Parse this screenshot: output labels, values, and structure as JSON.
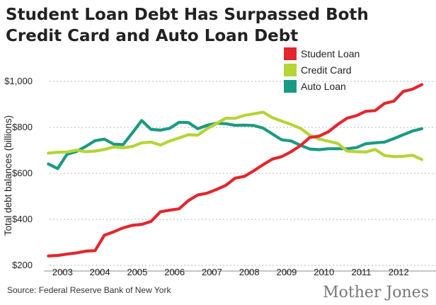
{
  "chart_data": {
    "type": "line",
    "title_line1": "Student Loan Debt Has Surpassed Both",
    "title_line2": "Credit Card and Auto Loan Debt",
    "ylabel": "Total debt balances (billions)",
    "source": "Source: Federal Reserve Bank of New York",
    "brand": "Mother Jones",
    "x_ticks": [
      "2003",
      "2004",
      "2005",
      "2006",
      "2007",
      "2008",
      "2009",
      "2010",
      "2011",
      "2012"
    ],
    "y_ticks": [
      "$200",
      "$400",
      "$600",
      "$800",
      "$1,000"
    ],
    "y_tick_values": [
      200,
      400,
      600,
      800,
      1000
    ],
    "xlim": [
      2002.5,
      2013.0
    ],
    "ylim": [
      200,
      1000
    ],
    "grid": true,
    "legend_placement": "top-right",
    "series": [
      {
        "name": "Student Loan",
        "color": "#e3262e",
        "points": [
          [
            2002.62,
            241
          ],
          [
            2002.87,
            243
          ],
          [
            2003.12,
            249
          ],
          [
            2003.37,
            254
          ],
          [
            2003.62,
            262
          ],
          [
            2003.87,
            264
          ],
          [
            2004.12,
            331
          ],
          [
            2004.37,
            346
          ],
          [
            2004.62,
            363
          ],
          [
            2004.87,
            374
          ],
          [
            2005.12,
            378
          ],
          [
            2005.37,
            391
          ],
          [
            2005.62,
            433
          ],
          [
            2005.87,
            440
          ],
          [
            2006.12,
            446
          ],
          [
            2006.37,
            482
          ],
          [
            2006.62,
            506
          ],
          [
            2006.87,
            514
          ],
          [
            2007.12,
            530
          ],
          [
            2007.37,
            548
          ],
          [
            2007.62,
            579
          ],
          [
            2007.87,
            587
          ],
          [
            2008.12,
            611
          ],
          [
            2008.37,
            638
          ],
          [
            2008.62,
            662
          ],
          [
            2008.87,
            673
          ],
          [
            2009.12,
            694
          ],
          [
            2009.37,
            721
          ],
          [
            2009.62,
            756
          ],
          [
            2009.87,
            762
          ],
          [
            2010.12,
            781
          ],
          [
            2010.37,
            813
          ],
          [
            2010.62,
            840
          ],
          [
            2010.87,
            851
          ],
          [
            2011.12,
            870
          ],
          [
            2011.37,
            873
          ],
          [
            2011.62,
            904
          ],
          [
            2011.87,
            914
          ],
          [
            2012.12,
            956
          ],
          [
            2012.37,
            966
          ],
          [
            2012.62,
            986
          ]
        ]
      },
      {
        "name": "Credit Card",
        "color": "#b5d435",
        "points": [
          [
            2002.62,
            688
          ],
          [
            2002.87,
            692
          ],
          [
            2003.12,
            693
          ],
          [
            2003.37,
            701
          ],
          [
            2003.62,
            694
          ],
          [
            2003.87,
            697
          ],
          [
            2004.12,
            704
          ],
          [
            2004.37,
            715
          ],
          [
            2004.62,
            711
          ],
          [
            2004.87,
            717
          ],
          [
            2005.12,
            733
          ],
          [
            2005.37,
            736
          ],
          [
            2005.62,
            723
          ],
          [
            2005.87,
            741
          ],
          [
            2006.12,
            754
          ],
          [
            2006.37,
            768
          ],
          [
            2006.62,
            766
          ],
          [
            2006.87,
            794
          ],
          [
            2007.12,
            817
          ],
          [
            2007.37,
            840
          ],
          [
            2007.62,
            839
          ],
          [
            2007.87,
            852
          ],
          [
            2008.12,
            859
          ],
          [
            2008.37,
            866
          ],
          [
            2008.62,
            842
          ],
          [
            2008.87,
            827
          ],
          [
            2009.12,
            813
          ],
          [
            2009.37,
            796
          ],
          [
            2009.62,
            766
          ],
          [
            2009.87,
            749
          ],
          [
            2010.12,
            740
          ],
          [
            2010.37,
            730
          ],
          [
            2010.62,
            697
          ],
          [
            2010.87,
            694
          ],
          [
            2011.12,
            693
          ],
          [
            2011.37,
            704
          ],
          [
            2011.62,
            678
          ],
          [
            2011.87,
            673
          ],
          [
            2012.12,
            674
          ],
          [
            2012.37,
            679
          ],
          [
            2012.62,
            660
          ]
        ]
      },
      {
        "name": "Auto Loan",
        "color": "#1a9a83",
        "points": [
          [
            2002.62,
            641
          ],
          [
            2002.87,
            621
          ],
          [
            2003.12,
            683
          ],
          [
            2003.37,
            695
          ],
          [
            2003.62,
            717
          ],
          [
            2003.87,
            742
          ],
          [
            2004.12,
            749
          ],
          [
            2004.37,
            727
          ],
          [
            2004.62,
            725
          ],
          [
            2004.87,
            776
          ],
          [
            2005.12,
            830
          ],
          [
            2005.37,
            791
          ],
          [
            2005.62,
            788
          ],
          [
            2005.87,
            796
          ],
          [
            2006.12,
            822
          ],
          [
            2006.37,
            821
          ],
          [
            2006.62,
            794
          ],
          [
            2006.87,
            809
          ],
          [
            2007.12,
            818
          ],
          [
            2007.37,
            816
          ],
          [
            2007.62,
            809
          ],
          [
            2007.87,
            810
          ],
          [
            2008.12,
            808
          ],
          [
            2008.37,
            797
          ],
          [
            2008.62,
            771
          ],
          [
            2008.87,
            746
          ],
          [
            2009.12,
            741
          ],
          [
            2009.37,
            722
          ],
          [
            2009.62,
            706
          ],
          [
            2009.87,
            703
          ],
          [
            2010.12,
            707
          ],
          [
            2010.37,
            707
          ],
          [
            2010.62,
            707
          ],
          [
            2010.87,
            712
          ],
          [
            2011.12,
            729
          ],
          [
            2011.37,
            733
          ],
          [
            2011.62,
            736
          ],
          [
            2011.87,
            751
          ],
          [
            2012.12,
            768
          ],
          [
            2012.37,
            784
          ],
          [
            2012.62,
            794
          ]
        ]
      }
    ]
  }
}
